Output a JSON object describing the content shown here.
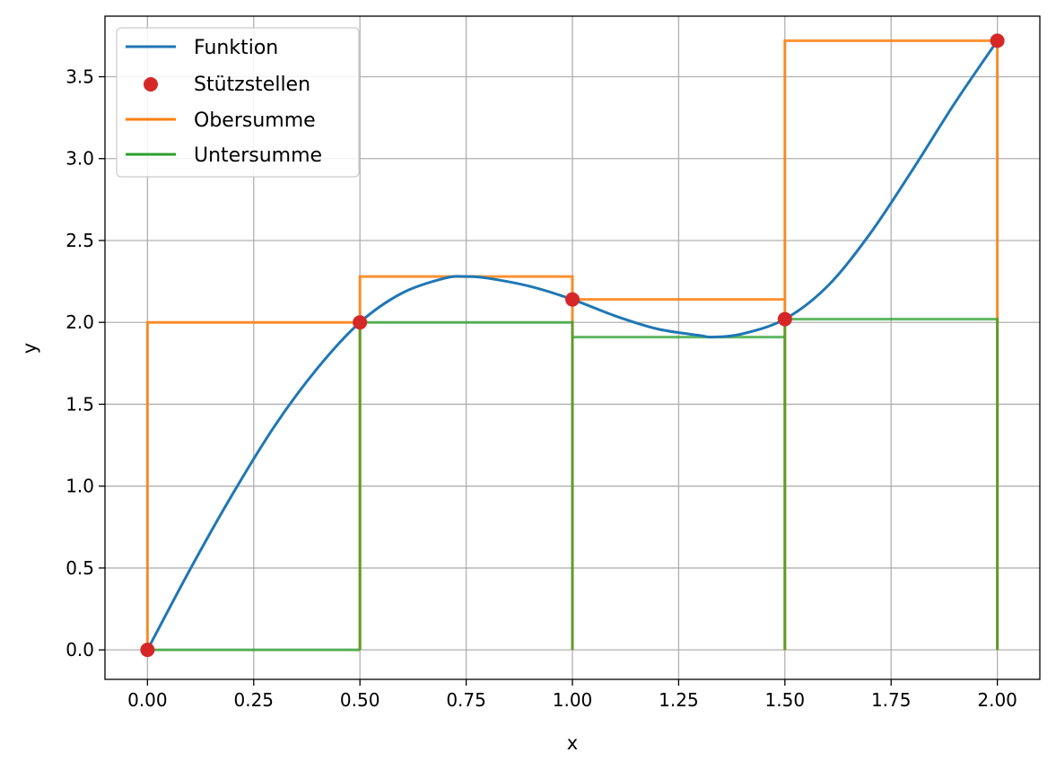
{
  "chart_data": {
    "type": "line",
    "title": "",
    "xlabel": "x",
    "ylabel": "y",
    "xlim": [
      -0.1,
      2.1
    ],
    "ylim": [
      -0.18,
      3.87
    ],
    "grid": true,
    "legend_position": "upper-left",
    "x_ticks": [
      0.0,
      0.25,
      0.5,
      0.75,
      1.0,
      1.25,
      1.5,
      1.75,
      2.0
    ],
    "x_tick_labels": [
      "0.00",
      "0.25",
      "0.50",
      "0.75",
      "1.00",
      "1.25",
      "1.50",
      "1.75",
      "2.00"
    ],
    "y_ticks": [
      0.0,
      0.5,
      1.0,
      1.5,
      2.0,
      2.5,
      3.0,
      3.5
    ],
    "y_tick_labels": [
      "0.0",
      "0.5",
      "1.0",
      "1.5",
      "2.0",
      "2.5",
      "3.0",
      "3.5"
    ],
    "series": [
      {
        "name": "Funktion",
        "kind": "line",
        "color": "#1f77b4",
        "x": [
          0.0,
          0.1,
          0.2,
          0.3,
          0.4,
          0.5,
          0.6,
          0.7,
          0.75,
          0.8,
          0.9,
          1.0,
          1.1,
          1.2,
          1.3,
          1.33,
          1.4,
          1.5,
          1.6,
          1.7,
          1.8,
          1.9,
          2.0
        ],
        "y": [
          0.0,
          0.49,
          0.95,
          1.37,
          1.72,
          2.0,
          2.18,
          2.27,
          2.28,
          2.27,
          2.22,
          2.14,
          2.04,
          1.96,
          1.92,
          1.91,
          1.93,
          2.02,
          2.22,
          2.54,
          2.93,
          3.34,
          3.72
        ]
      },
      {
        "name": "Stützstellen",
        "kind": "scatter",
        "color": "#d62728",
        "x": [
          0.0,
          0.5,
          1.0,
          1.5,
          2.0
        ],
        "y": [
          0.0,
          2.0,
          2.14,
          2.02,
          3.72
        ]
      },
      {
        "name": "Obersumme",
        "kind": "steps",
        "color": "#ff7f0e",
        "edges": [
          0.0,
          0.5,
          1.0,
          1.5,
          2.0
        ],
        "heights": [
          2.0,
          2.28,
          2.14,
          3.72
        ]
      },
      {
        "name": "Untersumme",
        "kind": "steps",
        "color": "#2ca02c",
        "edges": [
          0.0,
          0.5,
          1.0,
          1.5,
          2.0
        ],
        "heights": [
          0.0,
          2.0,
          1.91,
          2.02
        ]
      }
    ]
  }
}
